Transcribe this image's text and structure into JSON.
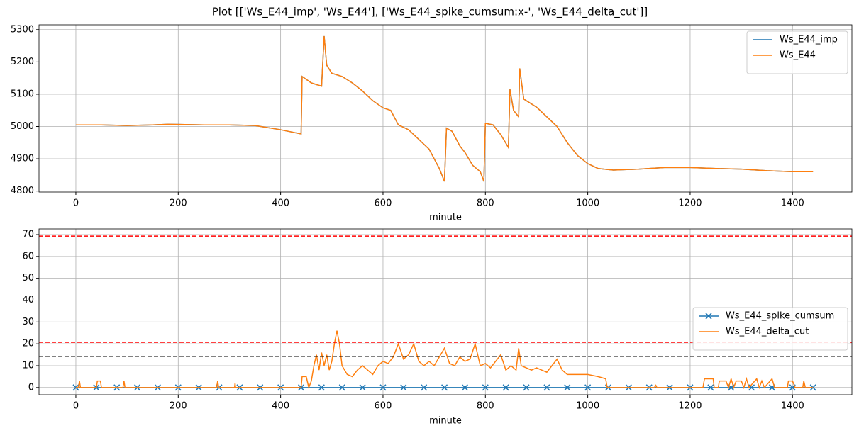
{
  "title": "Plot [['Ws_E44_imp', 'Ws_E44'], ['Ws_E44_spike_cumsum:x-', 'Ws_E44_delta_cut']]",
  "chart_data": [
    {
      "type": "line",
      "xlabel": "minute",
      "grid": true,
      "legend": "upper right",
      "xlim": [
        -72,
        1516
      ],
      "ylim": [
        4797,
        5315
      ],
      "xticks": [
        0,
        200,
        400,
        600,
        800,
        1000,
        1200,
        1400
      ],
      "yticks": [
        4800,
        4900,
        5000,
        5100,
        5200,
        5300
      ],
      "x": [
        0,
        50,
        100,
        150,
        180,
        250,
        300,
        350,
        400,
        440,
        442,
        460,
        480,
        485,
        490,
        500,
        520,
        540,
        560,
        580,
        600,
        615,
        630,
        650,
        670,
        690,
        700,
        710,
        720,
        724,
        735,
        750,
        760,
        775,
        790,
        797,
        800,
        815,
        830,
        845,
        848,
        855,
        865,
        867,
        875,
        900,
        920,
        940,
        960,
        980,
        1000,
        1020,
        1050,
        1100,
        1150,
        1200,
        1250,
        1300,
        1350,
        1400,
        1440
      ],
      "series": [
        {
          "name": "Ws_E44_imp",
          "color": "#1f77b4",
          "values": [
            5005,
            5005,
            5003,
            5005,
            5007,
            5005,
            5005,
            5003,
            4990,
            4977,
            5155,
            5135,
            5125,
            5280,
            5190,
            5165,
            5155,
            5135,
            5110,
            5080,
            5058,
            5050,
            5005,
            4990,
            4960,
            4930,
            4900,
            4870,
            4830,
            4995,
            4985,
            4940,
            4920,
            4880,
            4860,
            4830,
            5010,
            5005,
            4975,
            4935,
            5115,
            5050,
            5030,
            5180,
            5085,
            5060,
            5030,
            5000,
            4950,
            4910,
            4885,
            4870,
            4865,
            4868,
            4873,
            4873,
            4870,
            4868,
            4863,
            4860,
            4860
          ]
        },
        {
          "name": "Ws_E44",
          "color": "#ff7f0e",
          "values": [
            5005,
            5005,
            5003,
            5005,
            5007,
            5005,
            5005,
            5003,
            4990,
            4977,
            5155,
            5135,
            5125,
            5280,
            5190,
            5165,
            5155,
            5135,
            5110,
            5080,
            5058,
            5050,
            5005,
            4990,
            4960,
            4930,
            4900,
            4870,
            4830,
            4995,
            4985,
            4940,
            4920,
            4880,
            4860,
            4830,
            5010,
            5005,
            4975,
            4935,
            5115,
            5050,
            5030,
            5180,
            5085,
            5060,
            5030,
            5000,
            4950,
            4910,
            4885,
            4870,
            4865,
            4868,
            4873,
            4873,
            4870,
            4868,
            4863,
            4860,
            4860
          ]
        }
      ]
    },
    {
      "type": "line",
      "xlabel": "minute",
      "grid": true,
      "legend": "center right",
      "xlim": [
        -72,
        1516
      ],
      "ylim": [
        -3.3,
        72.6
      ],
      "xticks": [
        0,
        200,
        400,
        600,
        800,
        1000,
        1200,
        1400
      ],
      "yticks": [
        0,
        10,
        20,
        30,
        40,
        50,
        60,
        70
      ],
      "hlines": [
        {
          "value": 69.3,
          "color": "#ff0000"
        },
        {
          "value": 20.7,
          "color": "#ff0000"
        },
        {
          "value": 14.3,
          "color": "#000000"
        }
      ],
      "series": [
        {
          "name": "Ws_E44_spike_cumsum",
          "color": "#1f77b4",
          "marker": "x",
          "x": [
            0,
            40,
            80,
            120,
            160,
            200,
            240,
            280,
            320,
            360,
            400,
            440,
            480,
            520,
            560,
            600,
            640,
            680,
            720,
            760,
            800,
            840,
            880,
            920,
            960,
            1000,
            1040,
            1080,
            1120,
            1160,
            1200,
            1240,
            1280,
            1320,
            1360,
            1400,
            1440
          ],
          "values": [
            0,
            0,
            0,
            0,
            0,
            0,
            0,
            0,
            0,
            0,
            0,
            0,
            0,
            0,
            0,
            0,
            0,
            0,
            0,
            0,
            0,
            0,
            0,
            0,
            0,
            0,
            0,
            0,
            0,
            0,
            0,
            0,
            0,
            0,
            0,
            0,
            0
          ]
        },
        {
          "name": "Ws_E44_delta_cut",
          "color": "#ff7f0e",
          "x": [
            0,
            5,
            7,
            9,
            40,
            42,
            48,
            50,
            92,
            94,
            96,
            275,
            277,
            279,
            310,
            311,
            312,
            440,
            442,
            450,
            455,
            460,
            465,
            470,
            475,
            480,
            485,
            490,
            495,
            500,
            505,
            510,
            515,
            520,
            530,
            540,
            550,
            560,
            570,
            580,
            590,
            600,
            610,
            620,
            630,
            640,
            650,
            660,
            670,
            680,
            690,
            700,
            710,
            720,
            730,
            740,
            750,
            760,
            770,
            780,
            790,
            800,
            810,
            820,
            830,
            840,
            850,
            860,
            865,
            870,
            880,
            890,
            900,
            910,
            920,
            930,
            940,
            950,
            960,
            980,
            1000,
            1020,
            1035,
            1038,
            1130,
            1133,
            1135,
            1225,
            1228,
            1245,
            1247,
            1255,
            1257,
            1270,
            1275,
            1280,
            1285,
            1290,
            1300,
            1305,
            1310,
            1315,
            1330,
            1335,
            1340,
            1345,
            1360,
            1365,
            1390,
            1392,
            1400,
            1405,
            1420,
            1422,
            1425,
            1440
          ],
          "values": [
            0,
            0,
            3,
            0,
            0,
            3,
            3,
            0,
            0,
            3,
            0,
            0,
            3,
            0,
            0,
            2,
            0,
            0,
            5,
            5,
            0,
            3,
            10,
            15,
            8,
            16,
            10,
            15,
            8,
            12,
            20,
            26,
            20,
            10,
            6,
            5,
            8,
            10,
            8,
            6,
            10,
            12,
            11,
            14,
            20,
            13,
            15,
            20,
            12,
            10,
            12,
            10,
            14,
            18,
            11,
            10,
            14,
            12,
            13,
            20,
            10,
            11,
            9,
            12,
            15,
            8,
            10,
            8,
            18,
            10,
            9,
            8,
            9,
            8,
            7,
            10,
            13,
            8,
            6,
            6,
            6,
            5,
            4,
            0,
            0,
            1,
            0,
            0,
            4,
            4,
            0,
            0,
            3,
            3,
            0,
            4,
            0,
            3,
            3,
            0,
            4,
            0,
            4,
            0,
            3,
            0,
            4,
            0,
            0,
            3,
            3,
            0,
            0,
            3,
            0,
            0
          ]
        }
      ]
    }
  ]
}
